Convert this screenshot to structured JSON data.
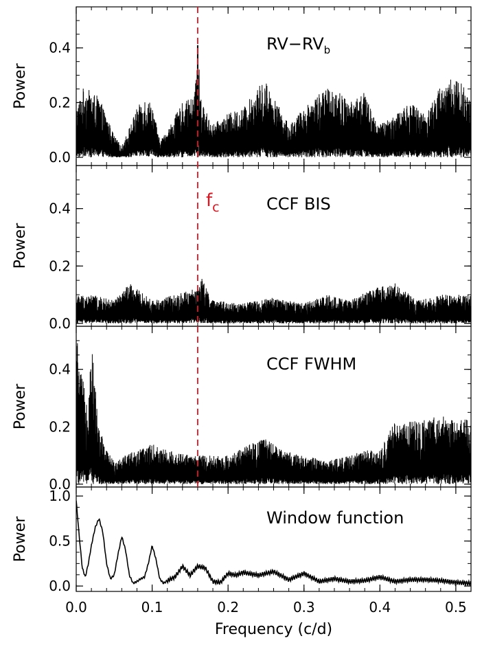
{
  "chart_data": {
    "type": "line",
    "x_axis": {
      "label": "Frequency (c/d)",
      "range": [
        0.0,
        0.52
      ],
      "ticks": [
        0.0,
        0.1,
        0.2,
        0.3,
        0.4,
        0.5
      ],
      "tick_labels": [
        "0.0",
        "0.1",
        "0.2",
        "0.3",
        "0.4",
        "0.5"
      ]
    },
    "marker": {
      "label_main": "f",
      "label_sub": "c",
      "frequency": 0.16,
      "color": "#e0141e",
      "style": "dashed"
    },
    "grid": false,
    "panels": [
      {
        "label_main": "RV−RV",
        "label_sub": "b",
        "ylabel": "Power",
        "ylim": [
          -0.03,
          0.55
        ],
        "yticks": [
          0.0,
          0.2,
          0.4
        ],
        "ytick_labels": [
          "0.0",
          "0.2",
          "0.4"
        ],
        "trend": {
          "x": [
            0.0,
            0.01,
            0.03,
            0.05,
            0.06,
            0.08,
            0.09,
            0.1,
            0.11,
            0.12,
            0.14,
            0.155,
            0.16,
            0.165,
            0.18,
            0.2,
            0.22,
            0.24,
            0.25,
            0.26,
            0.28,
            0.3,
            0.32,
            0.34,
            0.36,
            0.38,
            0.39,
            0.4,
            0.42,
            0.44,
            0.46,
            0.48,
            0.5,
            0.52
          ],
          "y": [
            0.18,
            0.26,
            0.22,
            0.08,
            0.04,
            0.18,
            0.22,
            0.2,
            0.06,
            0.1,
            0.2,
            0.22,
            0.41,
            0.2,
            0.12,
            0.16,
            0.18,
            0.26,
            0.28,
            0.22,
            0.12,
            0.18,
            0.24,
            0.26,
            0.2,
            0.24,
            0.16,
            0.12,
            0.16,
            0.2,
            0.16,
            0.26,
            0.3,
            0.22
          ]
        }
      },
      {
        "label_main": "CCF BIS",
        "label_sub": "",
        "ylabel": "Power",
        "ylim": [
          -0.01,
          0.55
        ],
        "yticks": [
          0.0,
          0.2,
          0.4
        ],
        "ytick_labels": [
          "0.0",
          "0.2",
          "0.4"
        ],
        "trend": {
          "x": [
            0.0,
            0.02,
            0.05,
            0.07,
            0.1,
            0.13,
            0.155,
            0.165,
            0.18,
            0.22,
            0.26,
            0.3,
            0.33,
            0.36,
            0.39,
            0.42,
            0.45,
            0.48,
            0.52
          ],
          "y": [
            0.1,
            0.1,
            0.08,
            0.14,
            0.08,
            0.1,
            0.12,
            0.16,
            0.08,
            0.07,
            0.09,
            0.07,
            0.1,
            0.08,
            0.12,
            0.14,
            0.08,
            0.1,
            0.1
          ]
        }
      },
      {
        "label_main": "CCF FWHM",
        "label_sub": "",
        "ylabel": "Power",
        "ylim": [
          -0.01,
          0.55
        ],
        "yticks": [
          0.0,
          0.2,
          0.4
        ],
        "ytick_labels": [
          "0.0",
          "0.2",
          "0.4"
        ],
        "trend": {
          "x": [
            0.0,
            0.005,
            0.015,
            0.02,
            0.03,
            0.04,
            0.05,
            0.06,
            0.08,
            0.1,
            0.12,
            0.15,
            0.16,
            0.2,
            0.23,
            0.25,
            0.27,
            0.3,
            0.33,
            0.36,
            0.38,
            0.4,
            0.42,
            0.45,
            0.48,
            0.5,
            0.52
          ],
          "y": [
            0.55,
            0.4,
            0.3,
            0.5,
            0.2,
            0.12,
            0.08,
            0.1,
            0.12,
            0.14,
            0.12,
            0.1,
            0.1,
            0.1,
            0.14,
            0.16,
            0.12,
            0.1,
            0.08,
            0.1,
            0.12,
            0.12,
            0.22,
            0.22,
            0.24,
            0.22,
            0.24
          ]
        }
      },
      {
        "label_main": "Window function",
        "label_sub": "",
        "ylabel": "Power",
        "ylim": [
          -0.06,
          1.1
        ],
        "yticks": [
          0.0,
          0.5,
          1.0
        ],
        "ytick_labels": [
          "0.0",
          "0.5",
          "1.0"
        ],
        "curve": {
          "x": [
            0.0,
            0.004,
            0.008,
            0.012,
            0.016,
            0.02,
            0.025,
            0.03,
            0.035,
            0.04,
            0.045,
            0.05,
            0.055,
            0.06,
            0.065,
            0.07,
            0.075,
            0.08,
            0.085,
            0.09,
            0.095,
            0.1,
            0.105,
            0.11,
            0.115,
            0.12,
            0.13,
            0.14,
            0.15,
            0.16,
            0.17,
            0.18,
            0.19,
            0.2,
            0.21,
            0.22,
            0.24,
            0.26,
            0.28,
            0.3,
            0.32,
            0.34,
            0.36,
            0.38,
            0.4,
            0.42,
            0.44,
            0.46,
            0.48,
            0.5,
            0.52
          ],
          "y": [
            0.95,
            0.55,
            0.2,
            0.1,
            0.25,
            0.45,
            0.65,
            0.75,
            0.6,
            0.25,
            0.08,
            0.12,
            0.35,
            0.55,
            0.4,
            0.12,
            0.03,
            0.05,
            0.08,
            0.1,
            0.25,
            0.45,
            0.3,
            0.08,
            0.03,
            0.06,
            0.1,
            0.22,
            0.12,
            0.22,
            0.2,
            0.05,
            0.04,
            0.14,
            0.12,
            0.15,
            0.12,
            0.16,
            0.07,
            0.14,
            0.05,
            0.08,
            0.05,
            0.06,
            0.1,
            0.05,
            0.07,
            0.07,
            0.06,
            0.04,
            0.03
          ]
        }
      }
    ]
  }
}
